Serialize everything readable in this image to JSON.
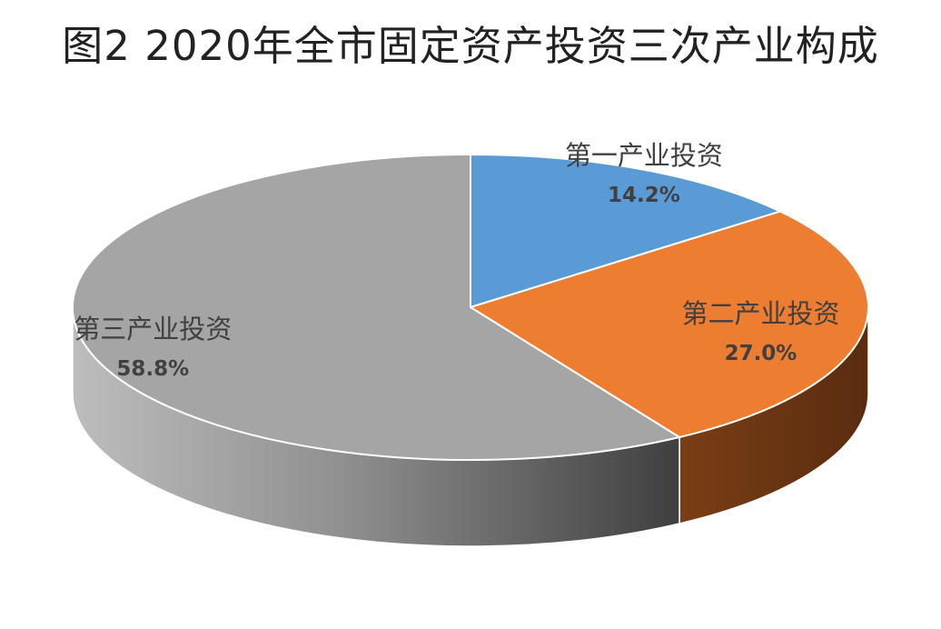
{
  "chart_data": {
    "type": "pie",
    "title": "图2  2020年全市固定资产投资三次产业构成",
    "categories": [
      "第一产业投资",
      "第二产业投资",
      "第三产业投资"
    ],
    "values": [
      14.2,
      27.0,
      58.8
    ],
    "value_labels": [
      "14.2%",
      "27.0%",
      "58.8%"
    ],
    "colors": [
      "#5b9bd5",
      "#ed7d31",
      "#a5a5a5"
    ],
    "style": "3d-pie",
    "legend": "none"
  }
}
